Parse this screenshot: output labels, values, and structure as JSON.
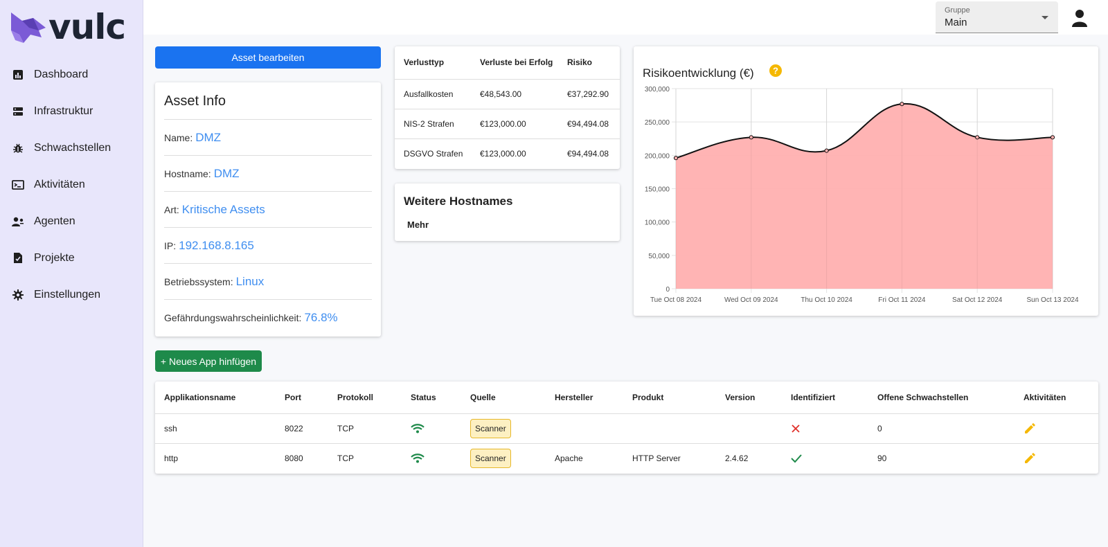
{
  "brand": {
    "name": "vulc"
  },
  "sidebar": {
    "items": [
      {
        "label": "Dashboard",
        "icon": "chart-icon"
      },
      {
        "label": "Infrastruktur",
        "icon": "server-icon"
      },
      {
        "label": "Schwachstellen",
        "icon": "bug-icon"
      },
      {
        "label": "Aktivitäten",
        "icon": "terminal-icon"
      },
      {
        "label": "Agenten",
        "icon": "agents-icon"
      },
      {
        "label": "Projekte",
        "icon": "project-file-icon"
      },
      {
        "label": "Einstellungen",
        "icon": "gear-icon"
      }
    ]
  },
  "header": {
    "group_label": "Gruppe",
    "group_value": "Main"
  },
  "actions": {
    "edit_asset": "Asset bearbeiten",
    "add_app": "+ Neues App hinfügen"
  },
  "asset_info": {
    "title": "Asset Info",
    "rows": [
      {
        "key": "Name:",
        "value": "DMZ"
      },
      {
        "key": "Hostname:",
        "value": "DMZ"
      },
      {
        "key": "Art:",
        "value": "Kritische Assets"
      },
      {
        "key": "IP:",
        "value": "192.168.8.165"
      },
      {
        "key": "Betriebssystem:",
        "value": "Linux"
      },
      {
        "key": "Gefährdungswahrscheinlichkeit:",
        "value": "76.8%"
      }
    ]
  },
  "loss_table": {
    "headers": [
      "Verlusttyp",
      "Verluste bei Erfolg",
      "Risiko"
    ],
    "rows": [
      [
        "Ausfallkosten",
        "€48,543.00",
        "€37,292.90"
      ],
      [
        "NIS-2 Strafen",
        "€123,000.00",
        "€94,494.08"
      ],
      [
        "DSGVO Strafen",
        "€123,000.00",
        "€94,494.08"
      ]
    ]
  },
  "hostnames": {
    "title": "Weitere Hostnames",
    "more": "Mehr"
  },
  "chart_data": {
    "type": "area",
    "title": "Risikoentwicklung (€)",
    "x": [
      "Tue Oct 08 2024",
      "Wed Oct 09 2024",
      "Thu Oct 10 2024",
      "Fri Oct 11 2024",
      "Sat Oct 12 2024",
      "Sun Oct 13 2024"
    ],
    "series": [
      {
        "values": [
          196000,
          227000,
          207000,
          277000,
          227000,
          227000
        ]
      }
    ],
    "yticks": [
      "0",
      "50,000",
      "100,000",
      "150,000",
      "200,000",
      "250,000",
      "300,000"
    ],
    "ylim": [
      0,
      300000
    ],
    "grid": true,
    "colors": {
      "fill": "#ffb0b0",
      "line": "#111111"
    }
  },
  "app_table": {
    "headers": [
      "Applikationsname",
      "Port",
      "Protokoll",
      "Status",
      "Quelle",
      "Hersteller",
      "Produkt",
      "Version",
      "Identifiziert",
      "Offene Schwachstellen",
      "Aktivitäten"
    ],
    "rows": [
      {
        "name": "ssh",
        "port": "8022",
        "protocol": "TCP",
        "status": "online",
        "source": "Scanner",
        "vendor": "",
        "product": "",
        "version": "",
        "identified": false,
        "open_vulns": "0"
      },
      {
        "name": "http",
        "port": "8080",
        "protocol": "TCP",
        "status": "online",
        "source": "Scanner",
        "vendor": "Apache",
        "product": "HTTP Server",
        "version": "2.4.62",
        "identified": true,
        "open_vulns": "90"
      }
    ]
  },
  "colors": {
    "primary": "#1a73f0",
    "success": "#1e8a4a",
    "link": "#3f8ef0",
    "sidebar_bg": "#e8e6fb",
    "warning": "#f5b800"
  }
}
